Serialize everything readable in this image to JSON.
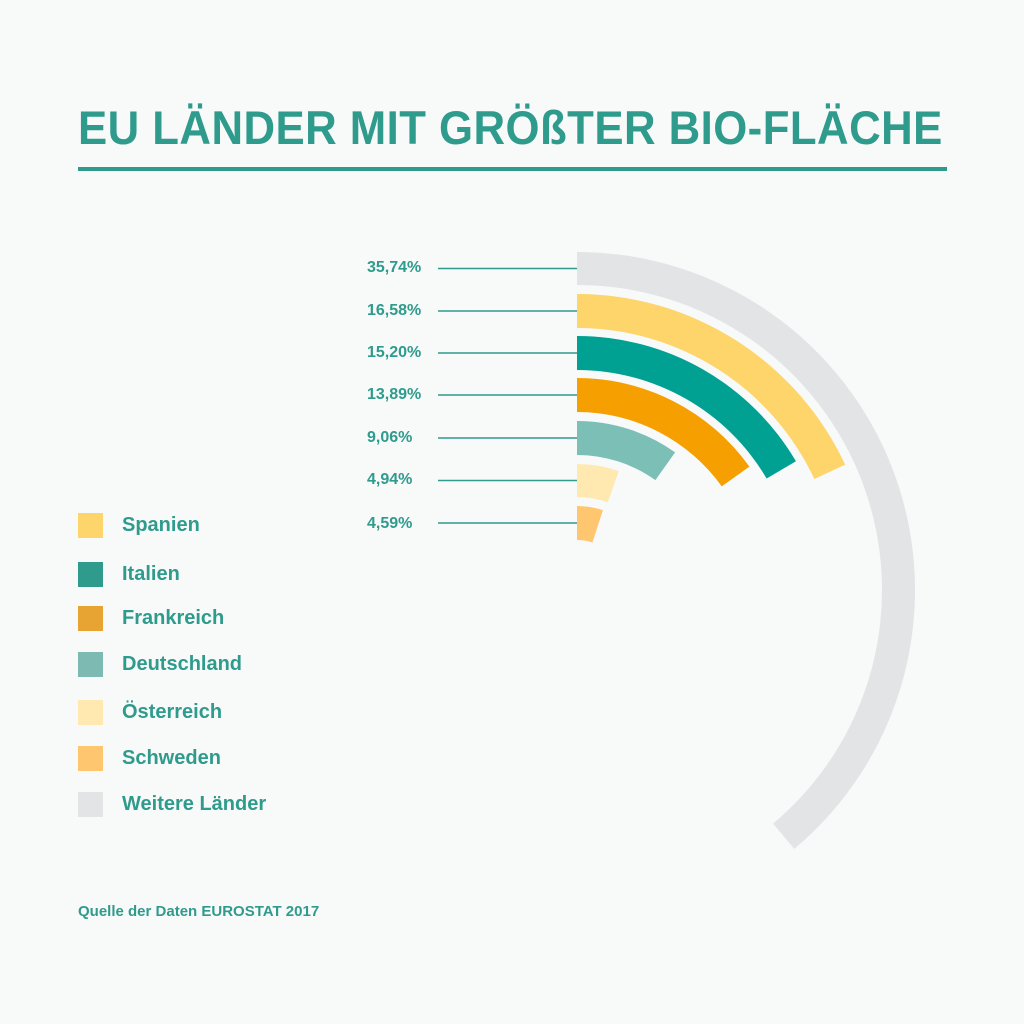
{
  "title": "EU LÄNDER MIT GRÖßTER BIO-FLÄCHE",
  "source": "Quelle der Daten EUROSTAT 2017",
  "colors": {
    "accent": "#2e9b8c",
    "background": "#f8f9f9"
  },
  "chart_data": {
    "type": "radial-bar",
    "title": "EU LÄNDER MIT GRÖßTER BIO-FLÄCHE",
    "unit": "%",
    "categories": [
      "Weitere Länder",
      "Spanien",
      "Italien",
      "Frankreich",
      "Deutschland",
      "Österreich",
      "Schweden"
    ],
    "values": [
      35.74,
      16.58,
      15.2,
      13.89,
      9.06,
      4.94,
      4.59
    ],
    "value_labels": [
      "35,74%",
      "16,58%",
      "15,20%",
      "13,89%",
      "9,06%",
      "4,94%",
      "4,59%"
    ],
    "colors": [
      "#e3e4e6",
      "#fdd56a",
      "#00a092",
      "#f5a000",
      "#7cbfb7",
      "#ffe9b0",
      "#ffc670"
    ],
    "legend_position": "left",
    "source": "Quelle der Daten EUROSTAT 2017"
  },
  "legend": [
    {
      "label": "Spanien",
      "color": "#fdd56a"
    },
    {
      "label": "Italien",
      "color": "#2e9b8c"
    },
    {
      "label": "Frankreich",
      "color": "#e8a432"
    },
    {
      "label": "Deutschland",
      "color": "#7cbab2"
    },
    {
      "label": "Österreich",
      "color": "#ffe9b0"
    },
    {
      "label": "Schweden",
      "color": "#ffc670"
    },
    {
      "label": "Weitere Länder",
      "color": "#e3e4e6"
    }
  ]
}
